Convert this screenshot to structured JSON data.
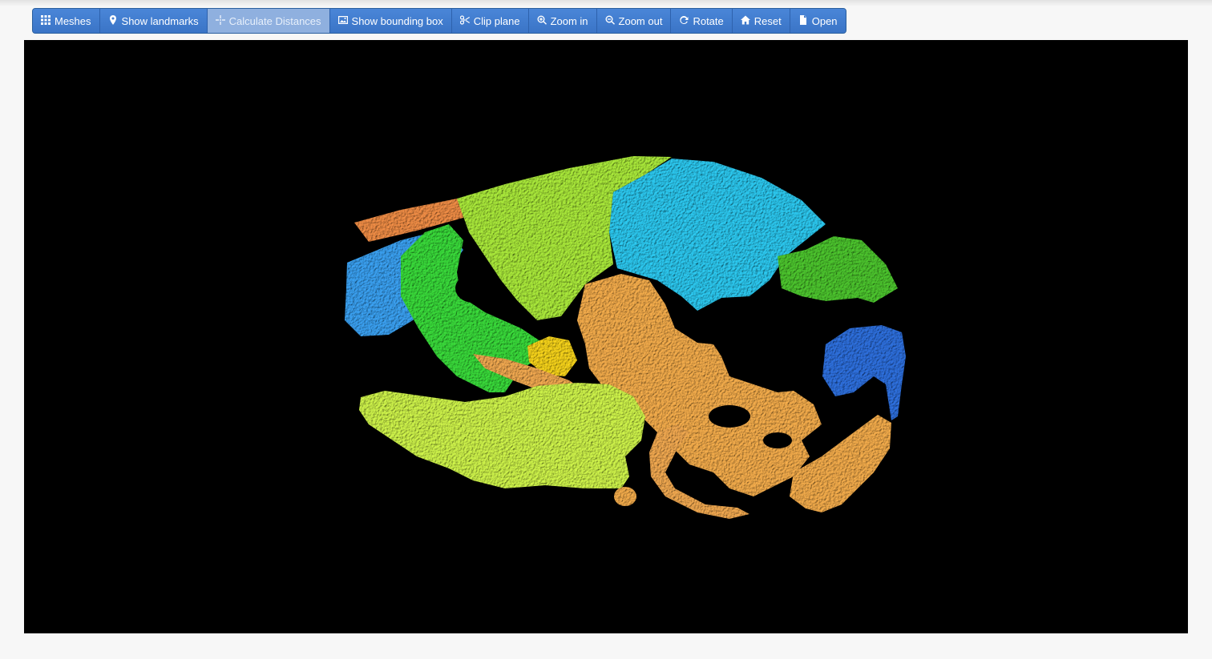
{
  "toolbar": {
    "buttons": [
      {
        "label": "Meshes",
        "icon": "grid-icon",
        "active": false
      },
      {
        "label": "Show landmarks",
        "icon": "map-marker-icon",
        "active": false
      },
      {
        "label": "Calculate Distances",
        "icon": "crosshair-icon",
        "active": true
      },
      {
        "label": "Show bounding box",
        "icon": "picture-icon",
        "active": false
      },
      {
        "label": "Clip plane",
        "icon": "scissors-icon",
        "active": false
      },
      {
        "label": "Zoom in",
        "icon": "zoom-in-icon",
        "active": false
      },
      {
        "label": "Zoom out",
        "icon": "zoom-out-icon",
        "active": false
      },
      {
        "label": "Rotate",
        "icon": "refresh-icon",
        "active": false
      },
      {
        "label": "Reset",
        "icon": "home-icon",
        "active": false
      },
      {
        "label": "Open",
        "icon": "file-icon",
        "active": false
      }
    ]
  },
  "viewer": {
    "background": "#000000",
    "mesh_colors": {
      "yellow_green": "#cdf24a",
      "lime": "#a9e83a",
      "sky_blue": "#2cc7ee",
      "blue": "#3aa0f0",
      "dark_blue": "#2e6fdc",
      "green": "#39d93a",
      "dark_green": "#4cc42e",
      "orange": "#f2ab4b",
      "light_orange": "#f0a850",
      "coral": "#ee8c45",
      "gold": "#f5d21a"
    }
  }
}
